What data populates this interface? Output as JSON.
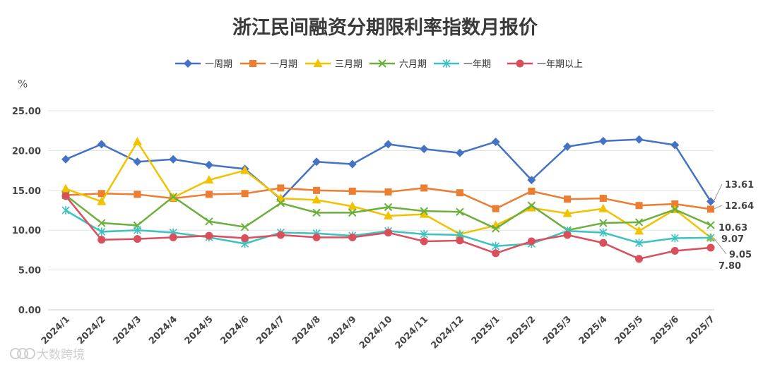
{
  "chart_data": {
    "type": "line",
    "title": "浙江民间融资分期限利率指数月报价",
    "unit_label": "%",
    "categories": [
      "2024/1",
      "2024/2",
      "2024/3",
      "2024/4",
      "2024/5",
      "2024/6",
      "2024/7",
      "2024/8",
      "2024/9",
      "2024/10",
      "2024/11",
      "2024/12",
      "2025/1",
      "2025/2",
      "2025/3",
      "2025/4",
      "2025/5",
      "2025/6",
      "2025/7"
    ],
    "ylim": [
      0,
      25
    ],
    "yticks": [
      "0.00",
      "5.00",
      "10.00",
      "15.00",
      "20.00",
      "25.00"
    ],
    "ytick_values": [
      0,
      5,
      10,
      15,
      20,
      25
    ],
    "grid": true,
    "legend_position": "top",
    "series": [
      {
        "name": "一周期",
        "color": "#4472C4",
        "marker": "diamond",
        "values": [
          18.9,
          20.8,
          18.6,
          18.9,
          18.2,
          17.7,
          13.9,
          18.6,
          18.3,
          20.8,
          20.2,
          19.7,
          21.1,
          16.3,
          20.5,
          21.2,
          21.4,
          20.7,
          13.61
        ]
      },
      {
        "name": "一月期",
        "color": "#ED7D31",
        "marker": "square",
        "values": [
          14.4,
          14.6,
          14.5,
          14.0,
          14.5,
          14.6,
          15.3,
          15.0,
          14.9,
          14.8,
          15.3,
          14.7,
          12.7,
          14.9,
          13.9,
          14.0,
          13.1,
          13.3,
          12.64
        ]
      },
      {
        "name": "三月期",
        "color": "#F2C200",
        "marker": "triangle",
        "values": [
          15.2,
          13.6,
          21.1,
          14.1,
          16.3,
          17.5,
          14.0,
          13.8,
          13.0,
          11.8,
          12.0,
          9.5,
          10.6,
          12.8,
          12.1,
          12.7,
          9.9,
          12.6,
          9.07
        ]
      },
      {
        "name": "六月期",
        "color": "#6BAF3C",
        "marker": "x",
        "values": [
          14.4,
          10.9,
          10.6,
          14.2,
          11.1,
          10.4,
          13.4,
          12.2,
          12.2,
          12.9,
          12.4,
          12.3,
          10.2,
          13.1,
          10.0,
          10.9,
          11.0,
          12.6,
          10.63
        ]
      },
      {
        "name": "一年期",
        "color": "#3EC1C1",
        "marker": "star",
        "values": [
          12.5,
          9.8,
          10.0,
          9.7,
          9.1,
          8.3,
          9.7,
          9.6,
          9.3,
          9.9,
          9.5,
          9.4,
          8.0,
          8.3,
          9.9,
          9.7,
          8.4,
          9.0,
          9.05
        ]
      },
      {
        "name": "一年期以上",
        "color": "#D94F5C",
        "marker": "circle",
        "values": [
          14.3,
          8.8,
          8.9,
          9.1,
          9.3,
          9.0,
          9.4,
          9.1,
          9.1,
          9.7,
          8.6,
          8.7,
          7.1,
          8.6,
          9.4,
          8.4,
          6.4,
          7.4,
          7.8
        ]
      }
    ],
    "end_labels": [
      "13.61",
      "12.64",
      "10.63",
      "9.07",
      "9.05",
      "7.80"
    ]
  },
  "watermark": {
    "text": "大数跨境",
    "icon": "logo-icon"
  }
}
